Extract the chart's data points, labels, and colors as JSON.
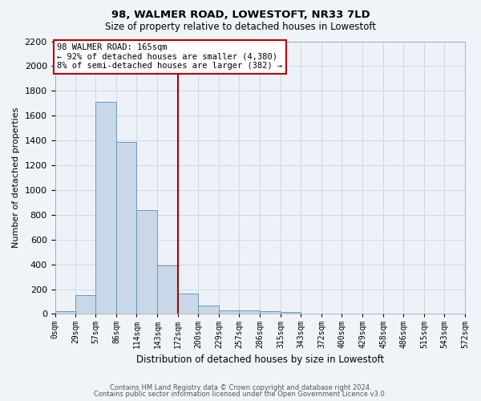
{
  "title1": "98, WALMER ROAD, LOWESTOFT, NR33 7LD",
  "title2": "Size of property relative to detached houses in Lowestoft",
  "xlabel": "Distribution of detached houses by size in Lowestoft",
  "ylabel": "Number of detached properties",
  "bar_color": "#c8d8e8",
  "bar_edge_color": "#6699bb",
  "grid_color": "#d0d8e0",
  "background_color": "#eef2f8",
  "fig_background_color": "#f0f4f8",
  "red_line_x": 172,
  "red_line_color": "#aa0000",
  "bin_edges": [
    0,
    29,
    57,
    86,
    114,
    143,
    172,
    200,
    229,
    257,
    286,
    315,
    343,
    372,
    400,
    429,
    458,
    486,
    515,
    543,
    572
  ],
  "bar_heights": [
    20,
    155,
    1710,
    1390,
    840,
    390,
    165,
    65,
    30,
    28,
    25,
    15,
    5,
    3,
    2,
    1,
    1,
    0,
    0,
    0
  ],
  "annotation_line1": "98 WALMER ROAD: 165sqm",
  "annotation_line2": "← 92% of detached houses are smaller (4,380)",
  "annotation_line3": "8% of semi-detached houses are larger (382) →",
  "annotation_box_color": "#ffffff",
  "annotation_box_edge_color": "#bb0000",
  "ylim": [
    0,
    2200
  ],
  "yticks": [
    0,
    200,
    400,
    600,
    800,
    1000,
    1200,
    1400,
    1600,
    1800,
    2000,
    2200
  ],
  "footer1": "Contains HM Land Registry data © Crown copyright and database right 2024.",
  "footer2": "Contains public sector information licensed under the Open Government Licence v3.0."
}
